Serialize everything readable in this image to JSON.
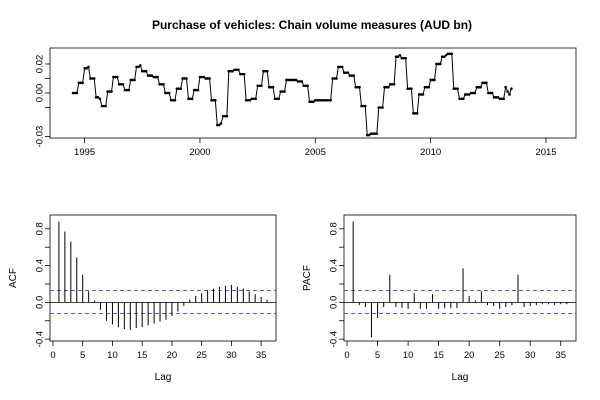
{
  "title": "Purchase of vehicles: Chain volume measures (AUD bn)",
  "colors": {
    "line": "#000000",
    "confidence": "#4040ff",
    "frame": "#000000"
  },
  "chart_data": [
    {
      "type": "line",
      "xlabel": "",
      "ylabel": "",
      "xlim": [
        1993.5,
        2016.3
      ],
      "ylim": [
        -0.031,
        0.031
      ],
      "xticks": [
        1995,
        2000,
        2005,
        2010,
        2015
      ],
      "xtick_labels": [
        "1995",
        "2000",
        "2005",
        "2010",
        "2015"
      ],
      "yticks": [
        -0.03,
        0.0,
        0.02
      ],
      "ytick_labels": [
        "-0.03",
        "0.00",
        "0.02"
      ],
      "extra_ytick_marks": [
        -0.01,
        0.01
      ],
      "start_year": 1994.5,
      "frequency": 12,
      "values": [
        0.0,
        0.0,
        0.0,
        0.007,
        0.007,
        0.007,
        0.017,
        0.017,
        0.018,
        0.01,
        0.01,
        0.01,
        -0.003,
        -0.003,
        -0.004,
        -0.009,
        -0.009,
        -0.009,
        0.001,
        0.001,
        0.001,
        0.011,
        0.011,
        0.011,
        0.006,
        0.006,
        0.006,
        0.002,
        0.002,
        0.002,
        0.009,
        0.009,
        0.009,
        0.018,
        0.018,
        0.019,
        0.015,
        0.015,
        0.015,
        0.012,
        0.012,
        0.012,
        0.011,
        0.011,
        0.011,
        0.006,
        0.006,
        0.006,
        0.0,
        0.0,
        0.0,
        -0.005,
        -0.005,
        -0.005,
        0.003,
        0.003,
        0.003,
        0.01,
        0.01,
        0.01,
        -0.004,
        -0.004,
        -0.004,
        0.002,
        0.002,
        0.002,
        0.011,
        0.011,
        0.011,
        0.01,
        0.01,
        0.01,
        -0.005,
        -0.005,
        -0.005,
        -0.022,
        -0.022,
        -0.021,
        -0.016,
        -0.016,
        -0.016,
        0.015,
        0.015,
        0.015,
        0.016,
        0.016,
        0.016,
        0.013,
        0.013,
        0.013,
        -0.005,
        -0.005,
        -0.005,
        -0.004,
        -0.004,
        -0.004,
        0.005,
        0.005,
        0.005,
        0.015,
        0.015,
        0.015,
        0.004,
        0.004,
        0.004,
        -0.004,
        -0.004,
        -0.004,
        0.001,
        0.001,
        0.001,
        0.009,
        0.009,
        0.009,
        0.009,
        0.009,
        0.009,
        0.008,
        0.008,
        0.008,
        0.005,
        0.005,
        0.005,
        -0.006,
        -0.006,
        -0.006,
        -0.005,
        -0.005,
        -0.005,
        -0.005,
        -0.005,
        -0.005,
        -0.005,
        -0.005,
        -0.005,
        0.01,
        0.01,
        0.01,
        0.018,
        0.018,
        0.018,
        0.014,
        0.014,
        0.014,
        0.012,
        0.012,
        0.012,
        0.004,
        0.004,
        0.004,
        -0.009,
        -0.009,
        -0.009,
        -0.029,
        -0.029,
        -0.028,
        -0.028,
        -0.028,
        -0.028,
        -0.01,
        -0.01,
        -0.01,
        0.004,
        0.004,
        0.004,
        0.006,
        0.006,
        0.006,
        0.025,
        0.025,
        0.026,
        0.024,
        0.024,
        0.024,
        0.003,
        0.003,
        0.003,
        -0.014,
        -0.014,
        -0.014,
        -0.001,
        -0.001,
        -0.001,
        0.004,
        0.004,
        0.004,
        0.009,
        0.009,
        0.009,
        0.02,
        0.02,
        0.02,
        0.025,
        0.025,
        0.026,
        0.027,
        0.027,
        0.027,
        0.003,
        0.003,
        0.003,
        -0.004,
        -0.004,
        -0.004,
        -0.001,
        -0.001,
        -0.001,
        0.0,
        0.0,
        0.0,
        0.004,
        0.004,
        0.004,
        0.007,
        0.007,
        0.007,
        0.0,
        0.0,
        0.0,
        -0.003,
        -0.003,
        -0.003,
        -0.004,
        -0.004,
        -0.004,
        0.004,
        0.001,
        -0.001,
        0.003
      ]
    },
    {
      "type": "bar",
      "xlabel": "Lag",
      "ylabel": "ACF",
      "xlim": [
        -0.5,
        37.5
      ],
      "ylim": [
        -0.42,
        0.95
      ],
      "xticks": [
        0,
        5,
        10,
        15,
        20,
        25,
        30,
        35
      ],
      "xtick_labels": [
        "0",
        "5",
        "10",
        "15",
        "20",
        "25",
        "30",
        "35"
      ],
      "yticks": [
        -0.4,
        0.0,
        0.4,
        0.8
      ],
      "ytick_labels": [
        "-0.4",
        "0.0",
        "0.4",
        "0.8"
      ],
      "extra_ytick_marks": [
        -0.2,
        0.2,
        0.6
      ],
      "confidence_band": [
        -0.12,
        0.13
      ],
      "lags": [
        1,
        2,
        3,
        4,
        5,
        6,
        7,
        8,
        9,
        10,
        11,
        12,
        13,
        14,
        15,
        16,
        17,
        18,
        19,
        20,
        21,
        22,
        23,
        24,
        25,
        26,
        27,
        28,
        29,
        30,
        31,
        32,
        33,
        34,
        35,
        36
      ],
      "values": [
        0.88,
        0.77,
        0.66,
        0.49,
        0.3,
        0.12,
        0.02,
        -0.08,
        -0.2,
        -0.24,
        -0.27,
        -0.29,
        -0.3,
        -0.28,
        -0.27,
        -0.25,
        -0.23,
        -0.21,
        -0.19,
        -0.15,
        -0.1,
        -0.04,
        0.03,
        0.07,
        0.1,
        0.13,
        0.15,
        0.17,
        0.18,
        0.19,
        0.17,
        0.15,
        0.12,
        0.09,
        0.06,
        0.03
      ]
    },
    {
      "type": "bar",
      "xlabel": "Lag",
      "ylabel": "PACF",
      "xlim": [
        -0.5,
        37.5
      ],
      "ylim": [
        -0.42,
        0.95
      ],
      "xticks": [
        0,
        5,
        10,
        15,
        20,
        25,
        30,
        35
      ],
      "xtick_labels": [
        "0",
        "5",
        "10",
        "15",
        "20",
        "25",
        "30",
        "35"
      ],
      "yticks": [
        -0.4,
        0.0,
        0.4,
        0.8
      ],
      "ytick_labels": [
        "-0.4",
        "0.0",
        "0.4",
        "0.8"
      ],
      "extra_ytick_marks": [
        -0.2,
        0.2,
        0.6
      ],
      "confidence_band": [
        -0.12,
        0.13
      ],
      "lags": [
        1,
        2,
        3,
        4,
        5,
        6,
        7,
        8,
        9,
        10,
        11,
        12,
        13,
        14,
        15,
        16,
        17,
        18,
        19,
        20,
        21,
        22,
        23,
        24,
        25,
        26,
        27,
        28,
        29,
        30,
        31,
        32,
        33,
        34,
        35,
        36
      ],
      "values": [
        0.88,
        -0.03,
        -0.05,
        -0.38,
        -0.17,
        -0.05,
        0.3,
        -0.05,
        -0.06,
        -0.07,
        0.1,
        -0.07,
        -0.07,
        0.09,
        -0.07,
        -0.06,
        -0.06,
        -0.06,
        0.37,
        0.07,
        0.02,
        0.12,
        -0.03,
        -0.04,
        -0.07,
        -0.05,
        -0.03,
        0.3,
        -0.05,
        -0.04,
        -0.03,
        -0.02,
        -0.02,
        -0.03,
        -0.02,
        -0.02
      ]
    }
  ]
}
